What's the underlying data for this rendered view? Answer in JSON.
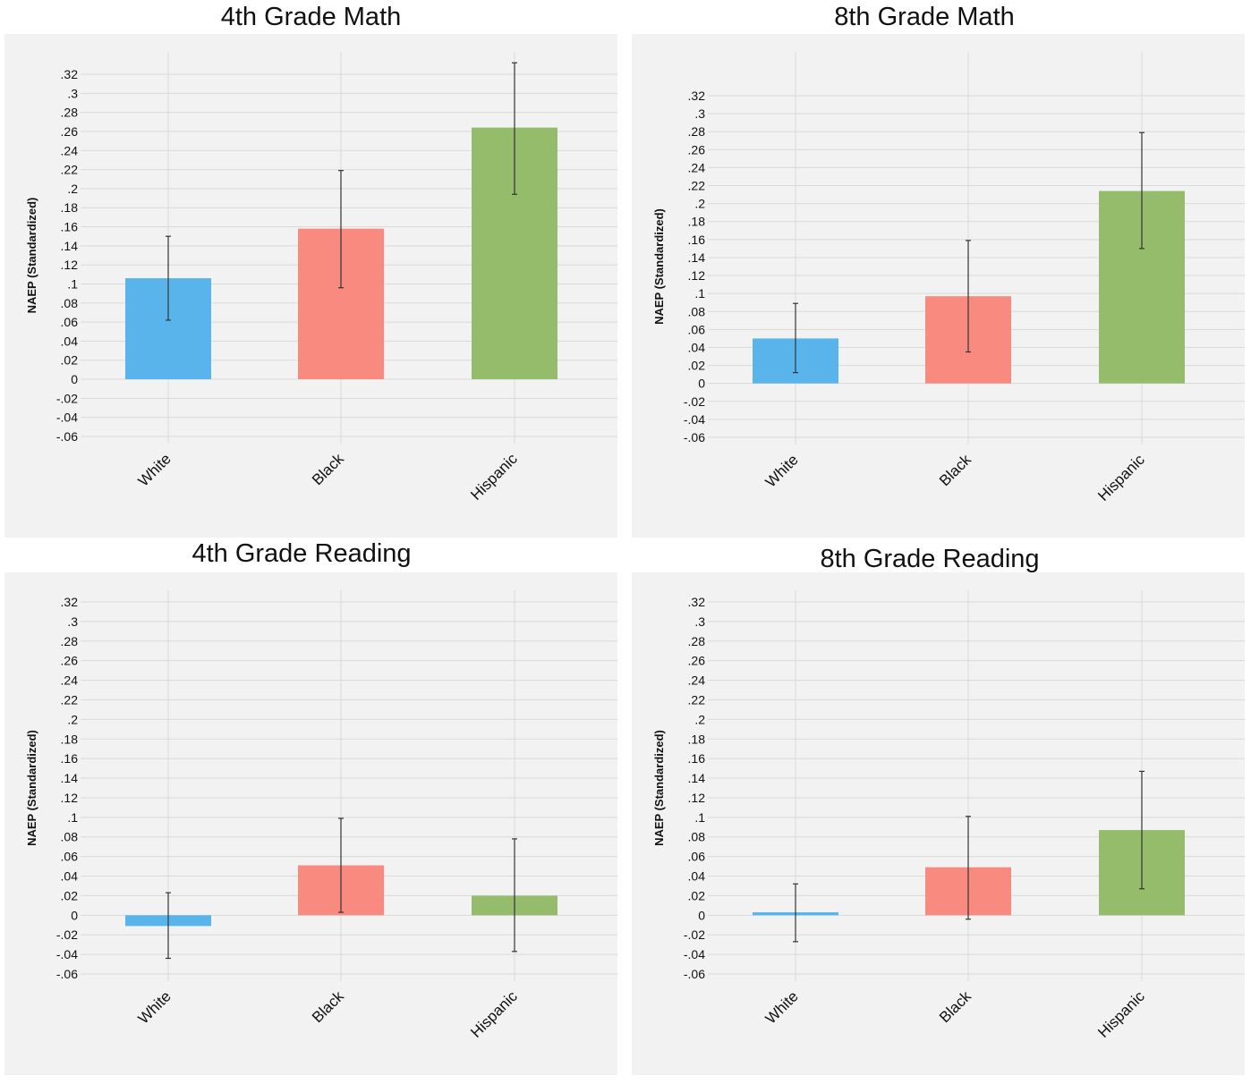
{
  "colors": {
    "White": "#5ab4ec",
    "Black": "#f98a80",
    "Hispanic": "#94bc6a",
    "panel_bg": "#f2f2f2",
    "grid": "#d9d9d9",
    "error_bar": "#333333"
  },
  "chart_data": [
    {
      "type": "bar",
      "title": "4th Grade Math",
      "ylabel": "NAEP (Standardized)",
      "xlabel": "",
      "categories": [
        "White",
        "Black",
        "Hispanic"
      ],
      "values": [
        0.106,
        0.158,
        0.264
      ],
      "error_low": [
        0.062,
        0.096,
        0.194
      ],
      "error_high": [
        0.15,
        0.219,
        0.332
      ],
      "ylim": [
        -0.06,
        0.32
      ],
      "yticks": [
        0.32,
        0.3,
        0.28,
        0.26,
        0.24,
        0.22,
        0.2,
        0.18,
        0.16,
        0.14,
        0.12,
        0.1,
        0.08,
        0.06,
        0.04,
        0.02,
        0,
        -0.02,
        -0.04,
        -0.06
      ],
      "ytick_labels": [
        ".32",
        ".3",
        ".28",
        ".26",
        ".24",
        ".22",
        ".2",
        ".18",
        ".16",
        ".14",
        ".12",
        ".1",
        ".08",
        ".06",
        ".04",
        ".02",
        "0",
        "-.02",
        "-.04",
        "-.06"
      ],
      "grid": true
    },
    {
      "type": "bar",
      "title": "8th Grade Math",
      "ylabel": "NAEP (Standardized)",
      "xlabel": "",
      "categories": [
        "White",
        "Black",
        "Hispanic"
      ],
      "values": [
        0.05,
        0.097,
        0.214
      ],
      "error_low": [
        0.012,
        0.035,
        0.15
      ],
      "error_high": [
        0.089,
        0.159,
        0.279
      ],
      "ylim": [
        -0.06,
        0.32
      ],
      "yticks": [
        0.32,
        0.3,
        0.28,
        0.26,
        0.24,
        0.22,
        0.2,
        0.18,
        0.16,
        0.14,
        0.12,
        0.1,
        0.08,
        0.06,
        0.04,
        0.02,
        0,
        -0.02,
        -0.04,
        -0.06
      ],
      "ytick_labels": [
        ".32",
        ".3",
        ".28",
        ".26",
        ".24",
        ".22",
        ".2",
        ".18",
        ".16",
        ".14",
        ".12",
        ".1",
        ".08",
        ".06",
        ".04",
        ".02",
        "0",
        "-.02",
        "-.04",
        "-.06"
      ],
      "grid": true
    },
    {
      "type": "bar",
      "title": "4th Grade Reading",
      "ylabel": "NAEP (Standardized)",
      "xlabel": "",
      "categories": [
        "White",
        "Black",
        "Hispanic"
      ],
      "values": [
        -0.011,
        0.051,
        0.02
      ],
      "error_low": [
        -0.044,
        0.003,
        -0.037
      ],
      "error_high": [
        0.023,
        0.099,
        0.078
      ],
      "ylim": [
        -0.06,
        0.32
      ],
      "yticks": [
        0.32,
        0.3,
        0.28,
        0.26,
        0.24,
        0.22,
        0.2,
        0.18,
        0.16,
        0.14,
        0.12,
        0.1,
        0.08,
        0.06,
        0.04,
        0.02,
        0,
        -0.02,
        -0.04,
        -0.06
      ],
      "ytick_labels": [
        ".32",
        ".3",
        ".28",
        ".26",
        ".24",
        ".22",
        ".2",
        ".18",
        ".16",
        ".14",
        ".12",
        ".1",
        ".08",
        ".06",
        ".04",
        ".02",
        "0",
        "-.02",
        "-.04",
        "-.06"
      ],
      "grid": true
    },
    {
      "type": "bar",
      "title": "8th Grade Reading",
      "ylabel": "NAEP (Standardized)",
      "xlabel": "",
      "categories": [
        "White",
        "Black",
        "Hispanic"
      ],
      "values": [
        0.003,
        0.049,
        0.087
      ],
      "error_low": [
        -0.027,
        -0.004,
        0.027
      ],
      "error_high": [
        0.032,
        0.101,
        0.147
      ],
      "ylim": [
        -0.06,
        0.32
      ],
      "yticks": [
        0.32,
        0.3,
        0.28,
        0.26,
        0.24,
        0.22,
        0.2,
        0.18,
        0.16,
        0.14,
        0.12,
        0.1,
        0.08,
        0.06,
        0.04,
        0.02,
        0,
        -0.02,
        -0.04,
        -0.06
      ],
      "ytick_labels": [
        ".32",
        ".3",
        ".28",
        ".26",
        ".24",
        ".22",
        ".2",
        ".18",
        ".16",
        ".14",
        ".12",
        ".1",
        ".08",
        ".06",
        ".04",
        ".02",
        "0",
        "-.02",
        "-.04",
        "-.06"
      ],
      "grid": true
    }
  ]
}
